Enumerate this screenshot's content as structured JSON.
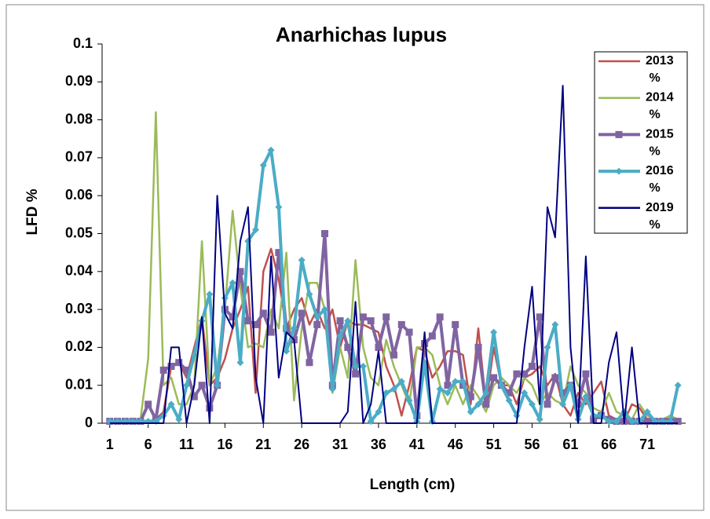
{
  "chart_data": {
    "type": "line",
    "title": "Anarhichas lupus",
    "xlabel": "Length (cm)",
    "ylabel": "LFD %",
    "x": [
      1,
      2,
      3,
      4,
      5,
      6,
      7,
      8,
      9,
      10,
      11,
      12,
      13,
      14,
      15,
      16,
      17,
      18,
      19,
      20,
      21,
      22,
      23,
      24,
      25,
      26,
      27,
      28,
      29,
      30,
      31,
      32,
      33,
      34,
      35,
      36,
      37,
      38,
      39,
      40,
      41,
      42,
      43,
      44,
      45,
      46,
      47,
      48,
      49,
      50,
      51,
      52,
      53,
      54,
      55,
      56,
      57,
      58,
      59,
      60,
      61,
      62,
      63,
      64,
      65,
      66,
      67,
      68,
      69,
      70,
      71,
      72,
      73,
      74,
      75
    ],
    "xlim": [
      0,
      76
    ],
    "xticks": [
      1,
      6,
      11,
      16,
      21,
      26,
      31,
      36,
      41,
      46,
      51,
      56,
      61,
      66,
      71
    ],
    "ylim": [
      0,
      0.1
    ],
    "yticks": [
      0,
      0.01,
      0.02,
      0.03,
      0.04,
      0.05,
      0.06,
      0.07,
      0.08,
      0.09,
      0.1
    ],
    "legend": "upper right",
    "series": [
      {
        "name": "2013 %",
        "color": "#c0504d",
        "marker": "none",
        "values": [
          0.0005,
          0.0005,
          0.0005,
          0.0005,
          0.0005,
          0.0005,
          0.001,
          0.003,
          0.015,
          0.016,
          0.012,
          0.02,
          0.028,
          0.01,
          0.012,
          0.017,
          0.025,
          0.03,
          0.036,
          0.008,
          0.04,
          0.046,
          0.038,
          0.025,
          0.03,
          0.033,
          0.026,
          0.03,
          0.025,
          0.03,
          0.02,
          0.027,
          0.026,
          0.026,
          0.025,
          0.024,
          0.015,
          0.01,
          0.002,
          0.01,
          0.02,
          0.019,
          0.012,
          0.015,
          0.019,
          0.019,
          0.018,
          0.005,
          0.025,
          0.005,
          0.02,
          0.01,
          0.01,
          0.005,
          0.012,
          0.013,
          0.015,
          0.01,
          0.013,
          0.005,
          0.002,
          0.008,
          0.005,
          0.008,
          0.011,
          0.002,
          0.001,
          0.0005,
          0.005,
          0.004,
          0.001,
          0.001,
          0.001,
          0.001,
          0.001
        ]
      },
      {
        "name": "2014 %",
        "color": "#9bbb59",
        "marker": "none",
        "values": [
          0.0005,
          0.0005,
          0.0005,
          0.0005,
          0.001,
          0.017,
          0.082,
          0.01,
          0.012,
          0.005,
          0.005,
          0.01,
          0.048,
          0.01,
          0.015,
          0.03,
          0.056,
          0.036,
          0.02,
          0.021,
          0.02,
          0.03,
          0.025,
          0.045,
          0.006,
          0.025,
          0.037,
          0.037,
          0.03,
          0.008,
          0.02,
          0.012,
          0.043,
          0.02,
          0.012,
          0.01,
          0.022,
          0.015,
          0.01,
          0.005,
          0.02,
          0.02,
          0.018,
          0.01,
          0.005,
          0.01,
          0.005,
          0.01,
          0.007,
          0.003,
          0.01,
          0.012,
          0.01,
          0.008,
          0.012,
          0.01,
          0.005,
          0.008,
          0.006,
          0.005,
          0.015,
          0.01,
          0.008,
          0.004,
          0.003,
          0.008,
          0.003,
          0.002,
          0.001,
          0.005,
          0.002,
          0.001,
          0.001,
          0.002,
          0.001
        ]
      },
      {
        "name": "2015 %",
        "color": "#8064a2",
        "marker": "square",
        "values": [
          0.0005,
          0.0005,
          0.0005,
          0.0005,
          0.0005,
          0.005,
          0.001,
          0.014,
          0.015,
          0.016,
          0.014,
          0.007,
          0.01,
          0.004,
          0.01,
          0.03,
          0.028,
          0.04,
          0.027,
          0.026,
          0.029,
          0.024,
          0.045,
          0.025,
          0.022,
          0.029,
          0.016,
          0.026,
          0.05,
          0.01,
          0.027,
          0.02,
          0.013,
          0.028,
          0.027,
          0.02,
          0.028,
          0.018,
          0.026,
          0.024,
          0.002,
          0.021,
          0.023,
          0.028,
          0.01,
          0.026,
          0.01,
          0.007,
          0.02,
          0.005,
          0.012,
          0.01,
          0.008,
          0.013,
          0.013,
          0.015,
          0.028,
          0.005,
          0.012,
          0.008,
          0.01,
          0.005,
          0.013,
          0.001,
          0.002,
          0.001,
          0.0005,
          0.0005,
          0.0005,
          0.0005,
          0.0005,
          0.0005,
          0.0005,
          0.0005,
          0.0005
        ]
      },
      {
        "name": "2016 %",
        "color": "#4bacc6",
        "marker": "diamond",
        "values": [
          0.0005,
          0.0005,
          0.0005,
          0.0005,
          0.0005,
          0.0005,
          0.0005,
          0.002,
          0.005,
          0.001,
          0.01,
          0.018,
          0.027,
          0.034,
          0.01,
          0.033,
          0.037,
          0.016,
          0.048,
          0.051,
          0.068,
          0.072,
          0.057,
          0.019,
          0.025,
          0.043,
          0.034,
          0.028,
          0.03,
          0.009,
          0.023,
          0.027,
          0.015,
          0.015,
          0.0005,
          0.003,
          0.008,
          0.009,
          0.011,
          0.006,
          0.0005,
          0.016,
          0.0005,
          0.009,
          0.008,
          0.011,
          0.011,
          0.003,
          0.005,
          0.008,
          0.024,
          0.01,
          0.006,
          0.002,
          0.008,
          0.005,
          0.001,
          0.02,
          0.026,
          0.005,
          0.01,
          0.001,
          0.007,
          0.002,
          0.002,
          0.0005,
          0.0005,
          0.003,
          0.0005,
          0.0005,
          0.003,
          0.0005,
          0.0005,
          0.0005,
          0.01
        ]
      },
      {
        "name": "2019 %",
        "color": "#000080",
        "marker": "none",
        "values": [
          0,
          0,
          0,
          0,
          0,
          0,
          0,
          0,
          0.02,
          0.02,
          0,
          0.01,
          0.028,
          0,
          0.06,
          0.029,
          0.025,
          0.048,
          0.057,
          0.012,
          0,
          0.044,
          0.012,
          0.024,
          0.022,
          0,
          0,
          0,
          0,
          0,
          0,
          0.003,
          0.032,
          0,
          0.005,
          0.019,
          0,
          0,
          0,
          0,
          0,
          0.024,
          0,
          0,
          0,
          0,
          0,
          0,
          0,
          0,
          0,
          0,
          0,
          0,
          0.02,
          0.036,
          0.005,
          0.057,
          0.049,
          0.089,
          0.02,
          0,
          0.044,
          0,
          0,
          0.016,
          0.024,
          0,
          0.02,
          0,
          0,
          0,
          0,
          0,
          0
        ]
      }
    ]
  }
}
